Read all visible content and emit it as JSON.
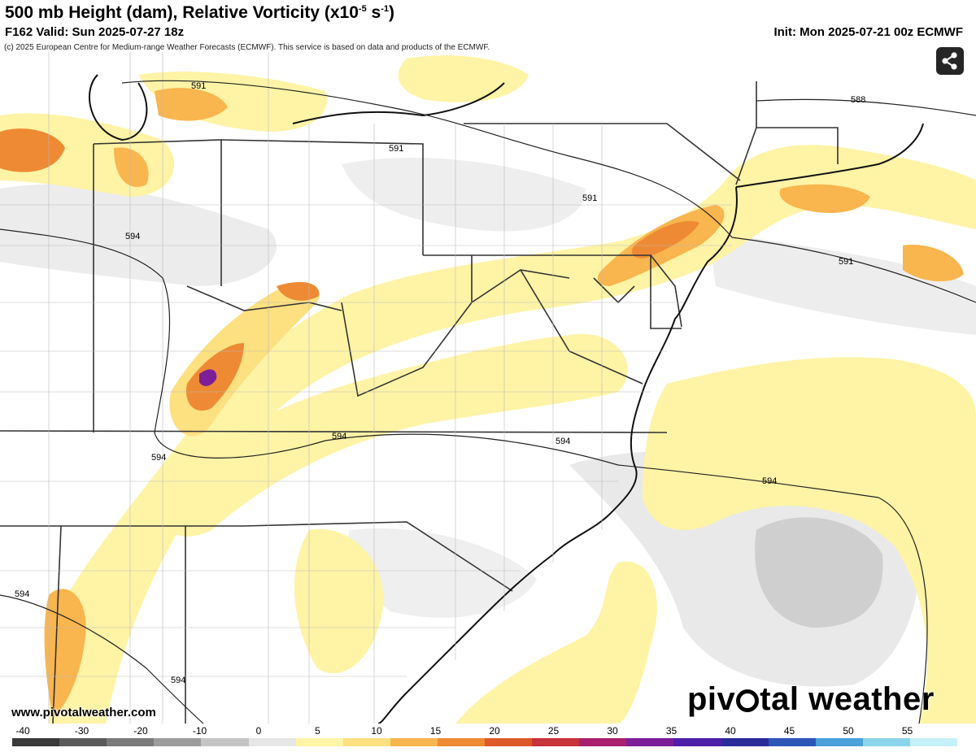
{
  "header": {
    "title_main": "500 mb Height (dam), Relative Vorticity (x10",
    "title_exp": "-5",
    "title_unit": " s",
    "title_exp2": "-1",
    "title_close": ")",
    "valid": "F162 Valid: Sun 2025-07-27 18z",
    "init": "Init: Mon 2025-07-21 00z ECMWF"
  },
  "copyright": "(c) 2025 European Centre for Medium-range Weather Forecasts (ECMWF). This service is based on data and products of the ECMWF.",
  "watermark": {
    "site": "www.pivotalweather.com",
    "logo_left": "piv",
    "logo_right": "tal weather"
  },
  "share_button": {
    "icon": "share-icon"
  },
  "contours": [
    {
      "label": "591"
    },
    {
      "label": "591"
    },
    {
      "label": "591"
    },
    {
      "label": "591"
    },
    {
      "label": "588"
    },
    {
      "label": "594"
    },
    {
      "label": "594"
    },
    {
      "label": "594"
    },
    {
      "label": "594"
    },
    {
      "label": "594"
    },
    {
      "label": "594"
    },
    {
      "label": "594"
    }
  ],
  "legend": {
    "ticks": [
      "-40",
      "-30",
      "-20",
      "-10",
      "0",
      "5",
      "10",
      "15",
      "20",
      "25",
      "30",
      "35",
      "40",
      "45",
      "50",
      "55"
    ],
    "colors": [
      "#3a3a3a",
      "#5a5a5a",
      "#7a7a7a",
      "#9c9c9c",
      "#c4c4c4",
      "#e6e6e6",
      "#fff3a6",
      "#fde080",
      "#f9b54e",
      "#ee8a34",
      "#dd5a28",
      "#c8323a",
      "#a8206e",
      "#7c1f98",
      "#4e1fa8",
      "#2a2c9a",
      "#2c56b8",
      "#4aa0d8",
      "#8cd4ea",
      "#c4f0f8"
    ]
  }
}
